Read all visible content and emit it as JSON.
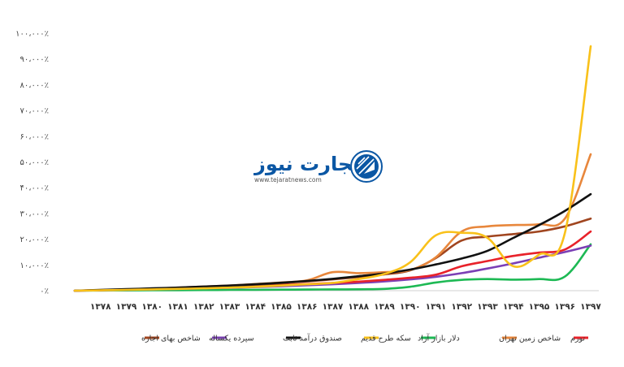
{
  "chart_data": {
    "type": "line",
    "title": "",
    "xlabel": "",
    "ylabel": "",
    "ylim": [
      0,
      100000
    ],
    "y_ticks": [
      0,
      10000,
      20000,
      30000,
      40000,
      50000,
      60000,
      70000,
      80000,
      90000,
      100000
    ],
    "y_tick_labels": [
      "۰٪",
      "۱۰،۰۰۰٪",
      "۲۰،۰۰۰٪",
      "۳۰،۰۰۰٪",
      "۴۰،۰۰۰٪",
      "۵۰،۰۰۰٪",
      "۶۰،۰۰۰٪",
      "۷۰،۰۰۰٪",
      "۸۰،۰۰۰٪",
      "۹۰،۰۰۰٪",
      "۱۰۰،۰۰۰٪"
    ],
    "x": [
      1377,
      1378,
      1379,
      1380,
      1381,
      1382,
      1383,
      1384,
      1385,
      1386,
      1387,
      1388,
      1389,
      1390,
      1391,
      1392,
      1393,
      1394,
      1395,
      1396,
      1397
    ],
    "x_tick_labels": [
      "۱۳۷۸",
      "۱۳۷۹",
      "۱۳۸۰",
      "۱۳۸۱",
      "۱۳۸۲",
      "۱۳۸۳",
      "۱۳۸۴",
      "۱۳۸۵",
      "۱۳۸۶",
      "۱۳۸۷",
      "۱۳۸۸",
      "۱۳۸۹",
      "۱۳۹۰",
      "۱۳۹۱",
      "۱۳۹۲",
      "۱۳۹۳",
      "۱۳۹۴",
      "۱۳۹۵",
      "۱۳۹۶",
      "۱۳۹۷"
    ],
    "grid": false,
    "legend_position": "bottom",
    "series": [
      {
        "name": "تورم",
        "color": "#e8222a",
        "values": [
          0,
          200,
          450,
          700,
          1000,
          1300,
          1600,
          1900,
          2200,
          2600,
          3000,
          3500,
          4200,
          5000,
          6200,
          9500,
          11500,
          13500,
          14800,
          16000,
          23000
        ]
      },
      {
        "name": "شاخص زمین تهران",
        "color": "#e8873c",
        "values": [
          0,
          250,
          500,
          800,
          1200,
          1600,
          2000,
          2600,
          3200,
          4000,
          7200,
          6800,
          7200,
          8000,
          13000,
          23000,
          25000,
          25500,
          25800,
          28000,
          53000
        ]
      },
      {
        "name": "دلار بازار آزاد",
        "color": "#1db954",
        "values": [
          0,
          50,
          100,
          150,
          200,
          250,
          300,
          350,
          400,
          450,
          500,
          550,
          700,
          1500,
          3200,
          4200,
          4500,
          4300,
          4500,
          5500,
          18000
        ]
      },
      {
        "name": "سکه طرح قدیم",
        "color": "#f9c11a",
        "values": [
          0,
          150,
          300,
          500,
          700,
          900,
          1200,
          1500,
          2000,
          2500,
          3000,
          4500,
          6500,
          11000,
          21500,
          22500,
          20500,
          9500,
          14000,
          22500,
          95000
        ]
      },
      {
        "name": "صندوق درآمد ثابت",
        "color": "#111111",
        "values": [
          0,
          300,
          600,
          900,
          1200,
          1600,
          2000,
          2500,
          3100,
          3800,
          4600,
          5600,
          6700,
          8200,
          10200,
          12500,
          15500,
          20500,
          25500,
          31000,
          37500
        ]
      },
      {
        "name": "سپرده یکساله",
        "color": "#7b3fb5",
        "values": [
          0,
          150,
          300,
          500,
          700,
          900,
          1100,
          1400,
          1700,
          2100,
          2500,
          3000,
          3600,
          4400,
          5400,
          6800,
          8600,
          10600,
          12800,
          15000,
          17500
        ]
      },
      {
        "name": "شاخص بهای اجاره",
        "color": "#a0451f",
        "values": [
          0,
          200,
          400,
          700,
          1000,
          1400,
          1800,
          2300,
          2900,
          3600,
          4400,
          5300,
          6300,
          7900,
          12700,
          19500,
          21000,
          22000,
          23000,
          25000,
          28000
        ]
      }
    ]
  },
  "logo": {
    "name": "تجارت نیوز",
    "url_text": "www.tejaratnews.com",
    "color_main": "#0b57a4",
    "color_accent": "#e32b2b"
  }
}
